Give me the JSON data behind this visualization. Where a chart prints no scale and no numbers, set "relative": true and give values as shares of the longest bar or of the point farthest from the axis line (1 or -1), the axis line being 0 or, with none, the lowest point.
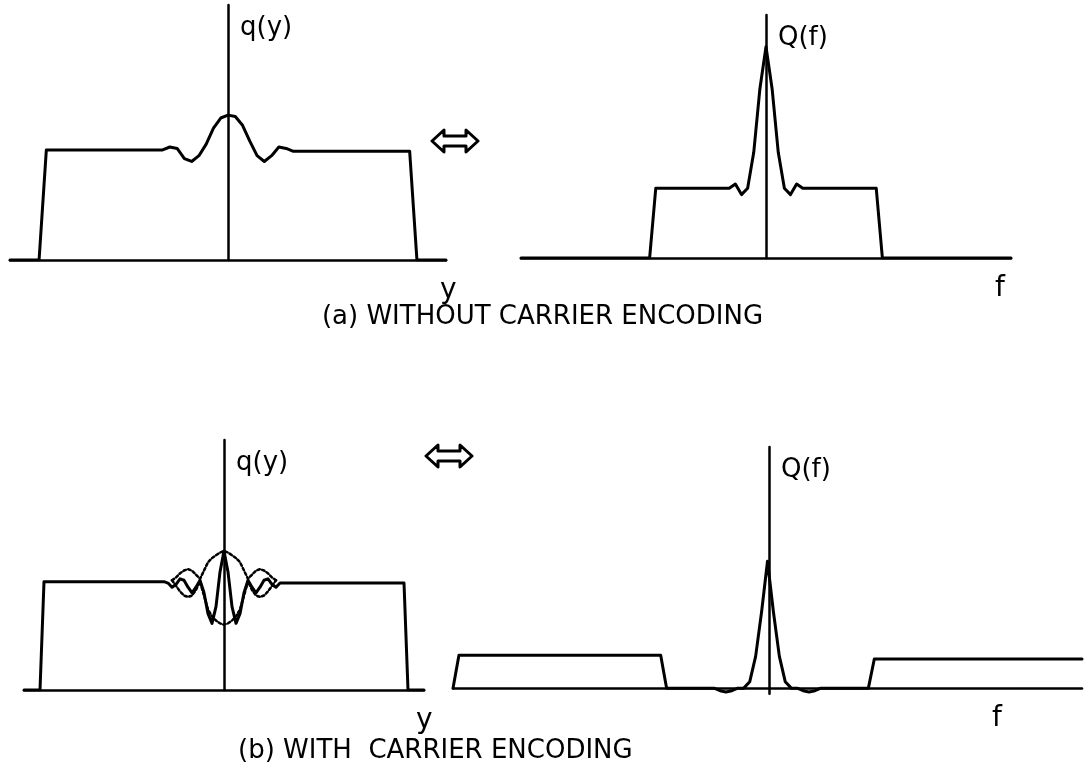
{
  "chart_data": [
    {
      "type": "line",
      "relative": true,
      "title": "(a) WITHOUT CARRIER ENCODING",
      "xlabel": "y",
      "ylabel": "q(y)",
      "categories": [
        null,
        null,
        null,
        null,
        null,
        null,
        null,
        null,
        null,
        null,
        null,
        null,
        null,
        null,
        null,
        null,
        null,
        null,
        null,
        null,
        null,
        null,
        null,
        null,
        null,
        null,
        null,
        null,
        null,
        null,
        null,
        null,
        null,
        null,
        null,
        null,
        null,
        null,
        null,
        null,
        null,
        null,
        null,
        null,
        null,
        null,
        null,
        null,
        null,
        null,
        null,
        null,
        null,
        null,
        null,
        null,
        null,
        null,
        null,
        null,
        null
      ],
      "series": [
        {
          "color": "#000000",
          "values": [
            0,
            0,
            0,
            0,
            0,
            0.76,
            0.76,
            0.76,
            0.76,
            0.76,
            0.76,
            0.76,
            0.76,
            0.76,
            0.76,
            0.76,
            0.76,
            0.76,
            0.76,
            0.76,
            0.76,
            0.76,
            0.78,
            0.77,
            0.7,
            0.68,
            0.72,
            0.8,
            0.91,
            0.98,
            1,
            0.99,
            0.93,
            0.82,
            0.72,
            0.68,
            0.72,
            0.78,
            0.77,
            0.75,
            0.75,
            0.75,
            0.75,
            0.75,
            0.75,
            0.75,
            0.75,
            0.75,
            0.75,
            0.75,
            0.75,
            0.75,
            0.75,
            0.75,
            0.75,
            0.75,
            0,
            0,
            0,
            0,
            0
          ]
        }
      ]
    },
    {
      "type": "line",
      "relative": true,
      "xlabel": "f",
      "ylabel": "Q(f)",
      "categories": [
        null,
        null,
        null,
        null,
        null,
        null,
        null,
        null,
        null,
        null,
        null,
        null,
        null,
        null,
        null,
        null,
        null,
        null,
        null,
        null,
        null,
        null,
        null,
        null,
        null,
        null,
        null,
        null,
        null,
        null,
        null,
        null,
        null,
        null,
        null,
        null,
        null,
        null,
        null,
        null,
        null,
        null,
        null,
        null,
        null,
        null,
        null,
        null,
        null,
        null,
        null,
        null,
        null,
        null,
        null,
        null,
        null,
        null,
        null,
        null,
        null,
        null,
        null,
        null,
        null,
        null,
        null,
        null,
        null,
        null,
        null,
        null,
        null,
        null,
        null,
        null,
        null,
        null,
        null,
        null,
        null
      ],
      "series": [
        {
          "color": "#000000",
          "values": [
            0,
            0,
            0,
            0,
            0,
            0,
            0,
            0,
            0,
            0,
            0,
            0,
            0,
            0,
            0,
            0,
            0,
            0,
            0,
            0,
            0,
            0,
            0.33,
            0.33,
            0.33,
            0.33,
            0.33,
            0.33,
            0.33,
            0.33,
            0.33,
            0.33,
            0.33,
            0.33,
            0.33,
            0.35,
            0.3,
            0.33,
            0.5,
            0.8,
            1,
            0.8,
            0.5,
            0.33,
            0.3,
            0.35,
            0.33,
            0.33,
            0.33,
            0.33,
            0.33,
            0.33,
            0.33,
            0.33,
            0.33,
            0.33,
            0.33,
            0.33,
            0.33,
            0,
            0,
            0,
            0,
            0,
            0,
            0,
            0,
            0,
            0,
            0,
            0,
            0,
            0,
            0,
            0,
            0,
            0,
            0,
            0,
            0,
            0
          ]
        }
      ]
    },
    {
      "type": "line",
      "relative": true,
      "title": "(b) WITH  CARRIER ENCODING",
      "xlabel": "y",
      "ylabel": "q(y)",
      "categories": [
        null,
        null,
        null,
        null,
        null,
        null,
        null,
        null,
        null,
        null,
        null,
        null,
        null,
        null,
        null,
        null,
        null,
        null,
        null,
        null,
        null,
        null,
        null,
        null,
        null,
        null,
        null,
        null,
        null,
        null,
        null,
        null,
        null,
        null,
        null,
        null,
        null,
        null,
        null,
        null,
        null,
        null,
        null,
        null,
        null,
        null,
        null,
        null,
        null,
        null,
        null,
        null,
        null,
        null,
        null,
        null,
        null,
        null,
        null,
        null,
        null,
        null,
        null,
        null,
        null,
        null,
        null,
        null,
        null,
        null,
        null,
        null,
        null,
        null,
        null,
        null,
        null,
        null,
        null,
        null,
        null,
        null,
        null,
        null,
        null,
        null,
        null,
        null,
        null,
        null,
        null,
        null,
        null,
        null,
        null,
        null,
        null,
        null,
        null,
        null,
        null
      ],
      "series": [
        {
          "color": "#000000",
          "line_style": "solid",
          "values": [
            0,
            0,
            0,
            0,
            0,
            0.78,
            0.78,
            0.78,
            0.78,
            0.78,
            0.78,
            0.78,
            0.78,
            0.78,
            0.78,
            0.78,
            0.78,
            0.78,
            0.78,
            0.78,
            0.78,
            0.78,
            0.78,
            0.78,
            0.78,
            0.78,
            0.78,
            0.78,
            0.78,
            0.78,
            0.78,
            0.78,
            0.78,
            0.78,
            0.78,
            0.78,
            0.77,
            0.74,
            0.76,
            0.8,
            0.79,
            0.74,
            0.7,
            0.74,
            0.79,
            0.7,
            0.55,
            0.48,
            0.6,
            0.85,
            1,
            0.85,
            0.6,
            0.48,
            0.55,
            0.7,
            0.79,
            0.74,
            0.7,
            0.74,
            0.79,
            0.8,
            0.76,
            0.74,
            0.77,
            0.77,
            0.77,
            0.77,
            0.77,
            0.77,
            0.77,
            0.77,
            0.77,
            0.77,
            0.77,
            0.77,
            0.77,
            0.77,
            0.77,
            0.77,
            0.77,
            0.77,
            0.77,
            0.77,
            0.77,
            0.77,
            0.77,
            0.77,
            0.77,
            0.77,
            0.77,
            0.77,
            0.77,
            0.77,
            0.77,
            0.77,
            0,
            0,
            0,
            0,
            0
          ]
        },
        {
          "color": "#000000",
          "line_style": "dotted",
          "values": [
            null,
            null,
            null,
            null,
            null,
            null,
            null,
            null,
            null,
            null,
            null,
            null,
            null,
            null,
            null,
            null,
            null,
            null,
            null,
            null,
            null,
            null,
            null,
            null,
            null,
            null,
            null,
            null,
            null,
            null,
            null,
            null,
            null,
            null,
            null,
            null,
            null,
            0.79,
            0.81,
            0.84,
            0.86,
            0.87,
            0.86,
            0.83,
            0.8,
            0.86,
            0.92,
            0.95,
            0.97,
            0.99,
            1,
            0.99,
            0.97,
            0.95,
            0.92,
            0.86,
            0.8,
            0.83,
            0.86,
            0.87,
            0.86,
            0.84,
            0.81,
            0.79,
            null,
            null,
            null,
            null,
            null,
            null,
            null,
            null,
            null,
            null,
            null,
            null,
            null,
            null,
            null,
            null,
            null,
            null,
            null,
            null,
            null,
            null,
            null,
            null,
            null,
            null,
            null,
            null,
            null,
            null,
            null,
            null,
            null,
            null,
            null,
            null,
            null
          ]
        },
        {
          "color": "#000000",
          "line_style": "dotted",
          "values": [
            null,
            null,
            null,
            null,
            null,
            null,
            null,
            null,
            null,
            null,
            null,
            null,
            null,
            null,
            null,
            null,
            null,
            null,
            null,
            null,
            null,
            null,
            null,
            null,
            null,
            null,
            null,
            null,
            null,
            null,
            null,
            null,
            null,
            null,
            null,
            null,
            null,
            0.79,
            0.75,
            0.71,
            0.68,
            0.67,
            0.68,
            0.72,
            0.78,
            0.68,
            0.58,
            0.53,
            0.5,
            0.48,
            0.47,
            0.48,
            0.5,
            0.53,
            0.58,
            0.68,
            0.78,
            0.72,
            0.68,
            0.67,
            0.68,
            0.71,
            0.75,
            0.79,
            null,
            null,
            null,
            null,
            null,
            null,
            null,
            null,
            null,
            null,
            null,
            null,
            null,
            null,
            null,
            null,
            null,
            null,
            null,
            null,
            null,
            null,
            null,
            null,
            null,
            null,
            null,
            null,
            null,
            null,
            null,
            null,
            null,
            null,
            null,
            null,
            null
          ]
        }
      ]
    },
    {
      "type": "line",
      "relative": true,
      "xlabel": "f",
      "ylabel": "Q(f)",
      "categories": [
        null,
        null,
        null,
        null,
        null,
        null,
        null,
        null,
        null,
        null,
        null,
        null,
        null,
        null,
        null,
        null,
        null,
        null,
        null,
        null,
        null,
        null,
        null,
        null,
        null,
        null,
        null,
        null,
        null,
        null,
        null,
        null,
        null,
        null,
        null,
        null,
        null,
        null,
        null,
        null,
        null,
        null,
        null,
        null,
        null,
        null,
        null,
        null,
        null,
        null,
        null,
        null,
        null,
        null,
        null,
        null,
        null,
        null,
        null,
        null,
        null,
        null,
        null,
        null,
        null,
        null,
        null,
        null,
        null,
        null,
        null,
        null,
        null,
        null,
        null,
        null,
        null,
        null,
        null,
        null,
        null,
        null,
        null,
        null,
        null,
        null,
        null,
        null,
        null,
        null,
        null,
        null,
        null,
        null,
        null,
        null,
        null,
        null,
        null,
        null,
        null,
        null,
        null,
        null,
        null,
        null,
        null
      ],
      "series": [
        {
          "color": "#000000",
          "values": [
            0,
            0.26,
            0.26,
            0.26,
            0.26,
            0.26,
            0.26,
            0.26,
            0.26,
            0.26,
            0.26,
            0.26,
            0.26,
            0.26,
            0.26,
            0.26,
            0.26,
            0.26,
            0.26,
            0.26,
            0.26,
            0.26,
            0.26,
            0.26,
            0.26,
            0.26,
            0.26,
            0.26,
            0.26,
            0.26,
            0.26,
            0.26,
            0.26,
            0.26,
            0.26,
            0.26,
            0,
            0,
            0,
            0,
            0,
            0,
            0,
            0,
            0,
            -0.02,
            -0.03,
            -0.02,
            0,
            0,
            0.05,
            0.25,
            0.6,
            1,
            0.6,
            0.25,
            0.05,
            0,
            0,
            -0.02,
            -0.03,
            -0.02,
            0,
            0,
            0,
            0,
            0,
            0,
            0,
            0,
            0,
            0.23,
            0.23,
            0.23,
            0.23,
            0.23,
            0.23,
            0.23,
            0.23,
            0.23,
            0.23,
            0.23,
            0.23,
            0.23,
            0.23,
            0.23,
            0.23,
            0.23,
            0.23,
            0.23,
            0.23,
            0.23,
            0.23,
            0.23,
            0.23,
            0.23,
            0.23,
            0.23,
            0.23,
            0.23,
            0.23,
            0.23,
            0.23,
            0.23,
            0.23,
            0.23,
            0.23
          ]
        }
      ]
    }
  ]
}
